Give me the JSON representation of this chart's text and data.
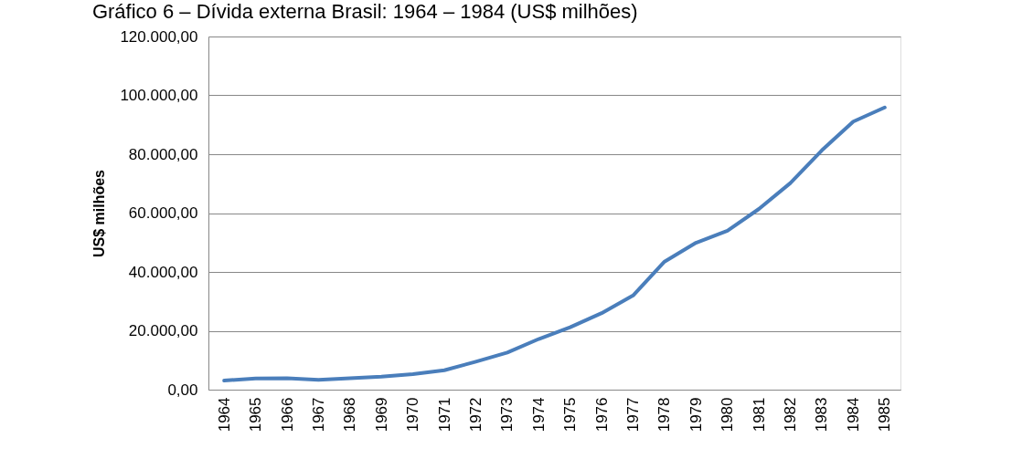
{
  "chart_data": {
    "type": "line",
    "title": "Gráfico 6 – Dívida externa Brasil: 1964 – 1984 (US$ milhões)",
    "ylabel": "US$ milhões",
    "categories": [
      "1964",
      "1965",
      "1966",
      "1967",
      "1968",
      "1969",
      "1970",
      "1971",
      "1972",
      "1973",
      "1974",
      "1975",
      "1976",
      "1977",
      "1978",
      "1979",
      "1980",
      "1981",
      "1982",
      "1983",
      "1984",
      "1985"
    ],
    "series": [
      {
        "color": "#4a7ebb",
        "values": [
          3100,
          3800,
          3900,
          3300,
          3900,
          4400,
          5300,
          6600,
          9500,
          12600,
          17200,
          21200,
          26000,
          32000,
          43500,
          49900,
          54000,
          61400,
          70200,
          81300,
          91100,
          95900
        ]
      }
    ],
    "ylim": [
      0,
      120000
    ],
    "yticks": [
      {
        "value": 0,
        "label": "0,00"
      },
      {
        "value": 20000,
        "label": "20.000,00"
      },
      {
        "value": 40000,
        "label": "40.000,00"
      },
      {
        "value": 60000,
        "label": "60.000,00"
      },
      {
        "value": 80000,
        "label": "80.000,00"
      },
      {
        "value": 100000,
        "label": "100.000,00"
      },
      {
        "value": 120000,
        "label": "120.000,00"
      }
    ],
    "grid": "y",
    "legend": false,
    "marker": "none",
    "line_style": "solid"
  }
}
